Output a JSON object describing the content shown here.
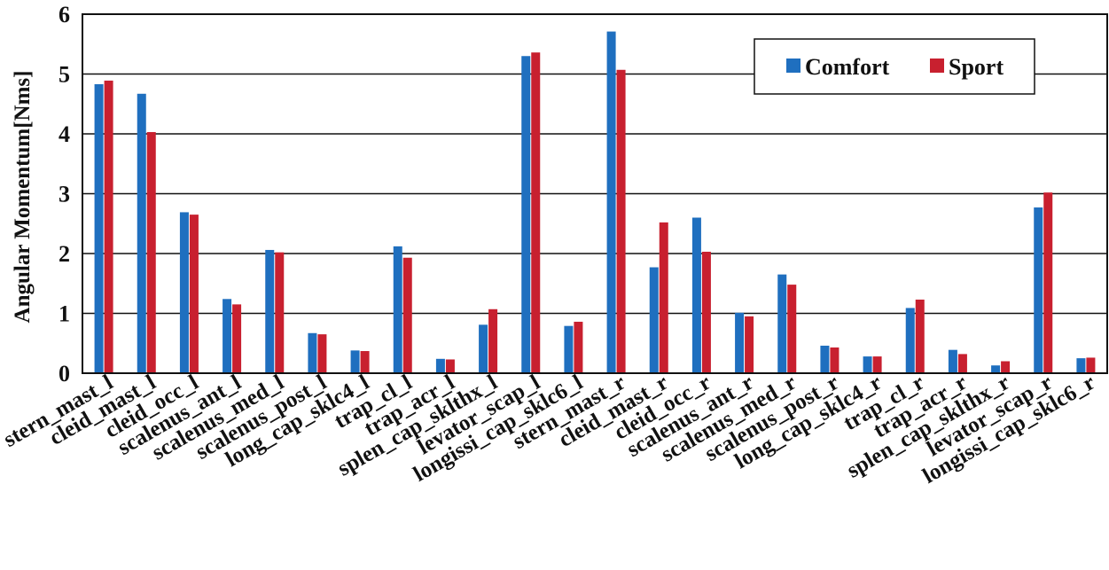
{
  "chart_data": {
    "type": "bar",
    "title": "",
    "xlabel": "",
    "ylabel": "Angular Momentum[Nms]",
    "ylim": [
      0,
      6
    ],
    "yticks": [
      0,
      1,
      2,
      3,
      4,
      5,
      6
    ],
    "grid": "horizontal",
    "legend_position": "top-right",
    "categories": [
      "stern_mast_l",
      "cleid_mast_l",
      "cleid_occ_l",
      "scalenus_ant_l",
      "scalenus_med_l",
      "scalenus_post_l",
      "long_cap_sklc4_l",
      "trap_cl_l",
      "trap_acr_l",
      "splen_cap_sklthx_l",
      "levator_scap_l",
      "longissi_cap_sklc6_l",
      "stern_mast_r",
      "cleid_mast_r",
      "cleid_occ_r",
      "scalenus_ant_r",
      "scalenus_med_r",
      "scalenus_post_r",
      "long_cap_sklc4_r",
      "trap_cl_r",
      "trap_acr_r",
      "splen_cap_sklthx_r",
      "levator_scap_r",
      "longissi_cap_sklc6_r"
    ],
    "series": [
      {
        "name": "Comfort",
        "color": "#1f6fbf",
        "values": [
          4.83,
          4.67,
          2.69,
          1.24,
          2.06,
          0.67,
          0.38,
          2.12,
          0.24,
          0.81,
          5.3,
          0.79,
          5.71,
          1.77,
          2.6,
          1.01,
          1.65,
          0.46,
          0.28,
          1.09,
          0.39,
          0.13,
          2.77,
          0.25
        ]
      },
      {
        "name": "Sport",
        "color": "#c8202f",
        "values": [
          4.89,
          4.03,
          2.65,
          1.15,
          2.02,
          0.65,
          0.37,
          1.93,
          0.23,
          1.07,
          5.36,
          0.86,
          5.07,
          2.52,
          2.03,
          0.95,
          1.48,
          0.43,
          0.28,
          1.23,
          0.32,
          0.2,
          3.02,
          0.26
        ]
      }
    ]
  }
}
